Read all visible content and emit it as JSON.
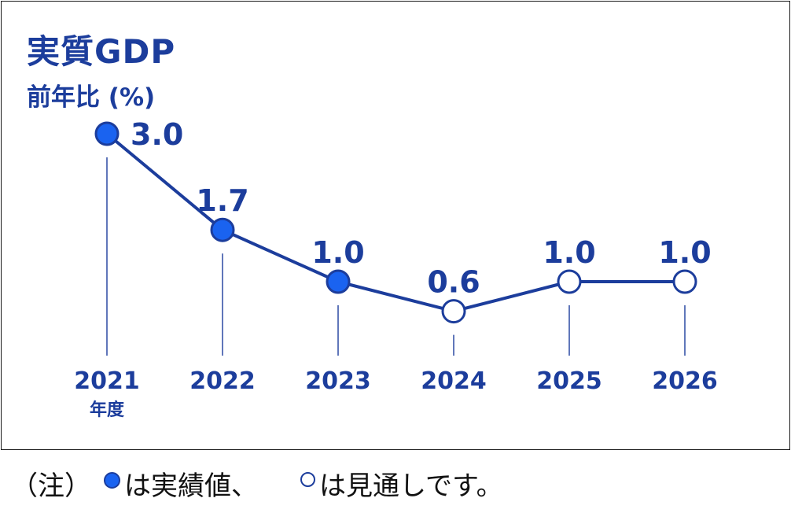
{
  "colors": {
    "line": "#1c3d9c",
    "text": "#1c3d9c",
    "actual_fill": "#1a63f0",
    "forecast_fill": "#ffffff",
    "frame": "#1a1a1a",
    "note_text": "#111111"
  },
  "chart_data": {
    "type": "line",
    "title": "実質GDP",
    "subtitle": "前年比 (%)",
    "x_unit_label": "年度",
    "categories": [
      "2021",
      "2022",
      "2023",
      "2024",
      "2025",
      "2026"
    ],
    "series": [
      {
        "values": [
          3.0,
          1.7,
          1.0,
          0.6,
          1.0,
          1.0
        ],
        "data_labels": [
          "3.0",
          "1.7",
          "1.0",
          "0.6",
          "1.0",
          "1.0"
        ],
        "marker_kind": [
          "actual",
          "actual",
          "actual",
          "forecast",
          "forecast",
          "forecast"
        ]
      }
    ],
    "grid": false,
    "legend": "bottom"
  },
  "footnote": {
    "prefix": "（注）",
    "actual_text": "は実績値、",
    "forecast_text": "は見通しです。"
  }
}
